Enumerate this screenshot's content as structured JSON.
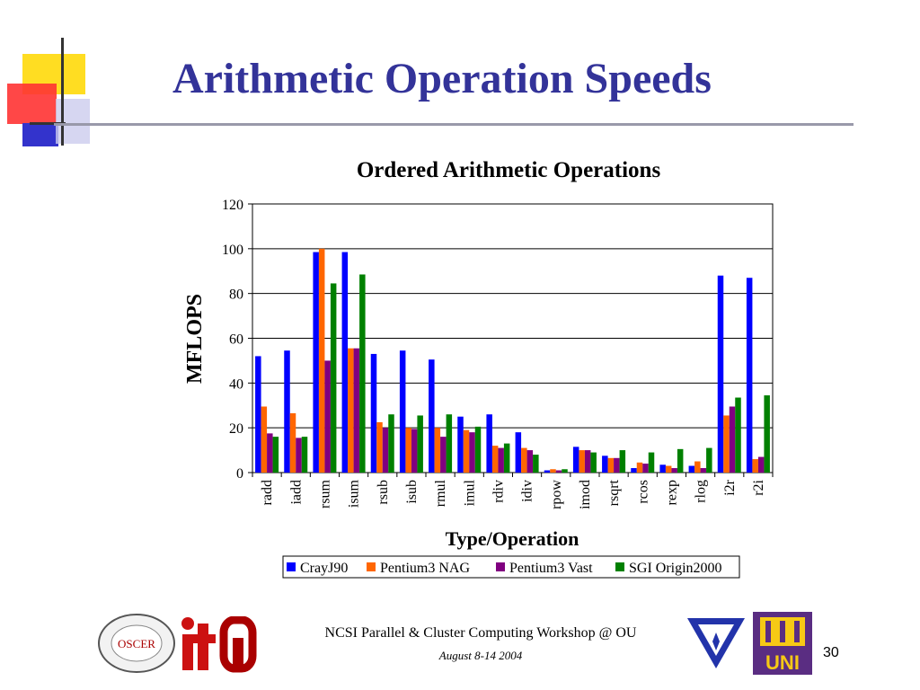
{
  "slide": {
    "title": "Arithmetic Operation Speeds",
    "footer_line1": "NCSI Parallel & Cluster Computing Workshop @ OU",
    "footer_line2": "August 8-14 2004",
    "page_number": "30"
  },
  "logos": {
    "oscer": "OSCER",
    "oscer_ring": "SUPERCOMPUTING CENTER for EDUCATION & RESEARCH",
    "uni": "UNI"
  },
  "colors": {
    "title": "#333399",
    "cray": "#0000ff",
    "pentium_nag": "#ff6600",
    "pentium_vast": "#800080",
    "sgi": "#008000"
  },
  "chart_data": {
    "type": "bar",
    "title": "Ordered Arithmetic Operations",
    "xlabel": "Type/Operation",
    "ylabel": "MFLOPS",
    "ylim": [
      0,
      120
    ],
    "yticks": [
      0,
      20,
      40,
      60,
      80,
      100,
      120
    ],
    "grid": true,
    "legend_position": "bottom",
    "categories": [
      "radd",
      "iadd",
      "rsum",
      "isum",
      "rsub",
      "isub",
      "rmul",
      "imul",
      "rdiv",
      "idiv",
      "rpow",
      "imod",
      "rsqrt",
      "rcos",
      "rexp",
      "rlog",
      "i2r",
      "r2i"
    ],
    "series": [
      {
        "name": "CrayJ90",
        "color": "#0000ff",
        "values": [
          52,
          54.5,
          98.5,
          98.5,
          53,
          54.5,
          50.5,
          25,
          26,
          18,
          1,
          11.5,
          7.5,
          2,
          3.5,
          3,
          88,
          87
        ]
      },
      {
        "name": "Pentium3 NAG",
        "color": "#ff6600",
        "values": [
          29.5,
          26.5,
          100,
          55.5,
          22.5,
          20,
          20,
          19,
          12,
          11,
          1.5,
          10,
          6.5,
          4.5,
          3,
          5,
          25.5,
          6
        ]
      },
      {
        "name": "Pentium3 Vast",
        "color": "#800080",
        "values": [
          17.5,
          15.5,
          50,
          55.5,
          20,
          19.5,
          16,
          18,
          11,
          10,
          1,
          10,
          6.5,
          4,
          2,
          2,
          29.5,
          7
        ]
      },
      {
        "name": "SGI Origin2000",
        "color": "#008000",
        "values": [
          16,
          16,
          84.5,
          88.5,
          26,
          25.5,
          26,
          20.5,
          13,
          8,
          1.5,
          9,
          10,
          9,
          10.5,
          11,
          33.5,
          34.5
        ]
      }
    ]
  }
}
